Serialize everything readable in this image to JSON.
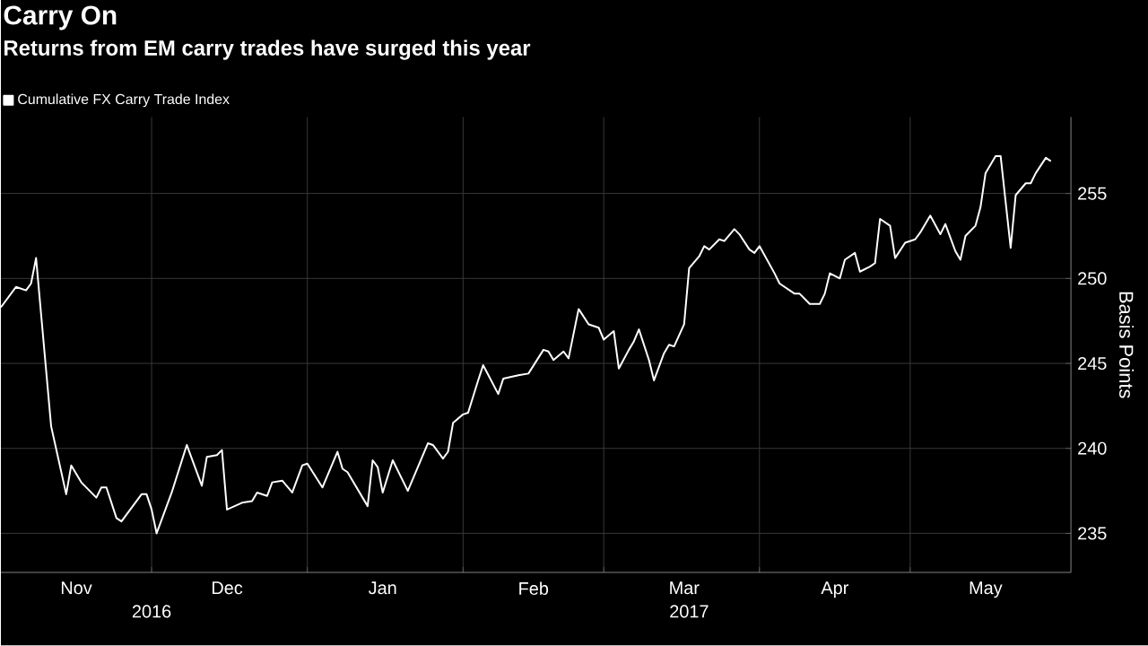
{
  "chart_data": {
    "type": "line",
    "title": "Carry On",
    "subtitle": "Returns from EM carry trades have surged this year",
    "ylabel": "Basis Points",
    "legend": "top left",
    "grid": true,
    "annotations": [
      "2016",
      "2017"
    ],
    "xlim": [
      "2016-11-01",
      "2017-06-02"
    ],
    "ylim": [
      232.7,
      259.5
    ],
    "yticks": [
      235,
      240,
      245,
      250,
      255
    ],
    "xticks": [
      {
        "value": "2016-11-16",
        "label": "Nov"
      },
      {
        "value": "2016-12-01",
        "label": null
      },
      {
        "value": "2016-12-16",
        "label": "Dec"
      },
      {
        "value": "2017-01-01",
        "label": null
      },
      {
        "value": "2017-01-16",
        "label": "Jan"
      },
      {
        "value": "2017-02-01",
        "label": null
      },
      {
        "value": "2017-02-15",
        "label": "Feb"
      },
      {
        "value": "2017-03-01",
        "label": null
      },
      {
        "value": "2017-03-17",
        "label": "Mar"
      },
      {
        "value": "2017-04-01",
        "label": null
      },
      {
        "value": "2017-04-16",
        "label": "Apr"
      },
      {
        "value": "2017-05-01",
        "label": null
      },
      {
        "value": "2017-05-16",
        "label": "May"
      }
    ],
    "series": [
      {
        "name": "Cumulative FX Carry Trade Index",
        "color": "#ffffff",
        "x": [
          "2016-11-01",
          "2016-11-04",
          "2016-11-06",
          "2016-11-07",
          "2016-11-08",
          "2016-11-11",
          "2016-11-14",
          "2016-11-15",
          "2016-11-17",
          "2016-11-20",
          "2016-11-21",
          "2016-11-22",
          "2016-11-24",
          "2016-11-25",
          "2016-11-29",
          "2016-11-30",
          "2016-12-01",
          "2016-12-02",
          "2016-12-05",
          "2016-12-08",
          "2016-12-11",
          "2016-12-12",
          "2016-12-14",
          "2016-12-15",
          "2016-12-16",
          "2016-12-19",
          "2016-12-21",
          "2016-12-22",
          "2016-12-24",
          "2016-12-25",
          "2016-12-27",
          "2016-12-29",
          "2016-12-31",
          "2017-01-01",
          "2017-01-04",
          "2017-01-07",
          "2017-01-08",
          "2017-01-09",
          "2017-01-13",
          "2017-01-14",
          "2017-01-15",
          "2017-01-16",
          "2017-01-18",
          "2017-01-21",
          "2017-01-25",
          "2017-01-26",
          "2017-01-28",
          "2017-01-29",
          "2017-01-30",
          "2017-02-01",
          "2017-02-02",
          "2017-02-04",
          "2017-02-05",
          "2017-02-08",
          "2017-02-09",
          "2017-02-12",
          "2017-02-14",
          "2017-02-17",
          "2017-02-18",
          "2017-02-19",
          "2017-02-21",
          "2017-02-22",
          "2017-02-24",
          "2017-02-26",
          "2017-02-28",
          "2017-03-01",
          "2017-03-03",
          "2017-03-04",
          "2017-03-06",
          "2017-03-07",
          "2017-03-08",
          "2017-03-10",
          "2017-03-11",
          "2017-03-13",
          "2017-03-14",
          "2017-03-15",
          "2017-03-17",
          "2017-03-18",
          "2017-03-20",
          "2017-03-21",
          "2017-03-22",
          "2017-03-24",
          "2017-03-25",
          "2017-03-27",
          "2017-03-28",
          "2017-03-30",
          "2017-03-31",
          "2017-04-01",
          "2017-04-04",
          "2017-04-05",
          "2017-04-08",
          "2017-04-09",
          "2017-04-10",
          "2017-04-11",
          "2017-04-13",
          "2017-04-14",
          "2017-04-15",
          "2017-04-17",
          "2017-04-18",
          "2017-04-20",
          "2017-04-21",
          "2017-04-23",
          "2017-04-24",
          "2017-04-25",
          "2017-04-27",
          "2017-04-28",
          "2017-04-30",
          "2017-05-02",
          "2017-05-03",
          "2017-05-05",
          "2017-05-07",
          "2017-05-08",
          "2017-05-10",
          "2017-05-11",
          "2017-05-12",
          "2017-05-14",
          "2017-05-15",
          "2017-05-16",
          "2017-05-18",
          "2017-05-19",
          "2017-05-21",
          "2017-05-22",
          "2017-05-24",
          "2017-05-25",
          "2017-05-26",
          "2017-05-28",
          "2017-05-29"
        ],
        "values": [
          248.3,
          249.5,
          249.3,
          249.7,
          251.2,
          241.3,
          237.3,
          239.0,
          238.0,
          237.1,
          237.7,
          237.7,
          235.9,
          235.7,
          237.3,
          237.3,
          236.4,
          235.0,
          237.4,
          240.2,
          237.8,
          239.5,
          239.6,
          239.9,
          236.4,
          236.8,
          236.9,
          237.4,
          237.2,
          238.0,
          238.1,
          237.4,
          239.0,
          239.1,
          237.7,
          239.8,
          238.8,
          238.6,
          236.6,
          239.3,
          238.9,
          237.4,
          239.3,
          237.5,
          240.3,
          240.2,
          239.4,
          239.8,
          241.5,
          242.0,
          242.1,
          244.0,
          244.9,
          243.2,
          244.1,
          244.3,
          244.4,
          245.8,
          245.7,
          245.2,
          245.7,
          245.3,
          248.2,
          247.3,
          247.1,
          246.4,
          246.9,
          244.7,
          245.8,
          246.3,
          247.0,
          245.2,
          244.0,
          245.6,
          246.1,
          246.0,
          247.3,
          250.6,
          251.3,
          251.9,
          251.7,
          252.3,
          252.2,
          252.9,
          252.6,
          251.7,
          251.5,
          251.9,
          250.3,
          249.7,
          249.1,
          249.1,
          248.8,
          248.5,
          248.5,
          249.1,
          250.3,
          250.0,
          251.1,
          251.5,
          250.4,
          250.7,
          250.9,
          253.5,
          253.1,
          251.2,
          252.1,
          252.3,
          252.7,
          253.7,
          252.6,
          253.2,
          251.6,
          251.1,
          252.5,
          253.1,
          254.2,
          256.2,
          257.2,
          257.2,
          251.8,
          254.9,
          255.6,
          255.6,
          256.2,
          257.1,
          256.9
        ]
      }
    ]
  }
}
